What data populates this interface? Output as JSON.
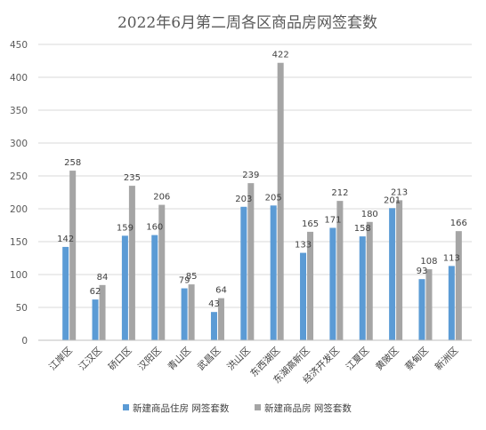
{
  "chart_data": {
    "type": "bar",
    "title": "2022年6月第二周各区商品房网签套数",
    "xlabel": "",
    "ylabel": "",
    "ylim": [
      0,
      450
    ],
    "yticks": [
      0,
      50,
      100,
      150,
      200,
      250,
      300,
      350,
      400,
      450
    ],
    "grid": true,
    "legend_position": "bottom",
    "categories": [
      "江岸区",
      "江汉区",
      "硚口区",
      "汉阳区",
      "青山区",
      "武昌区",
      "洪山区",
      "东西湖区",
      "东湖高新区",
      "经济开发区",
      "江夏区",
      "黄陂区",
      "蔡甸区",
      "新洲区"
    ],
    "series": [
      {
        "name": "新建商品住房 网签套数",
        "color": "#5b9bd5",
        "values": [
          142,
          62,
          159,
          160,
          79,
          43,
          203,
          205,
          133,
          171,
          158,
          201,
          93,
          113
        ]
      },
      {
        "name": "新建商品房 网签套数",
        "color": "#a5a5a5",
        "values": [
          258,
          84,
          235,
          206,
          85,
          64,
          239,
          422,
          165,
          212,
          180,
          213,
          108,
          166
        ]
      }
    ]
  }
}
